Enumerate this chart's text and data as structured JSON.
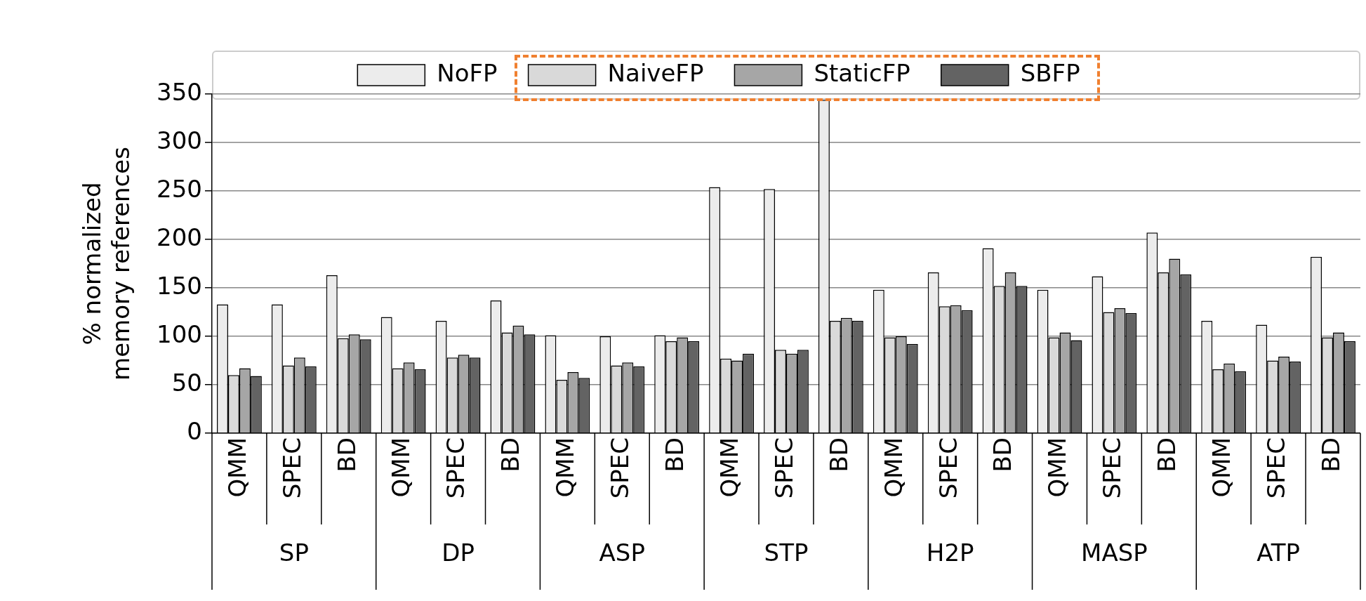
{
  "chart_data": {
    "type": "bar",
    "ylabel": "% normalized\nmemory references",
    "categories": [
      "QMM",
      "SPEC",
      "BD",
      "QMM",
      "SPEC",
      "BD",
      "QMM",
      "SPEC",
      "BD",
      "QMM",
      "SPEC",
      "BD",
      "QMM",
      "SPEC",
      "BD",
      "QMM",
      "SPEC",
      "BD",
      "QMM",
      "SPEC",
      "BD"
    ],
    "annotations": [
      "SP",
      "DP",
      "ASP",
      "STP",
      "H2P",
      "MASP",
      "ATP"
    ],
    "series": [
      {
        "name": "NoFP",
        "color": "#ececec",
        "values": [
          133,
          133,
          163,
          120,
          116,
          137,
          101,
          100,
          101,
          254,
          252,
          344,
          148,
          166,
          191,
          148,
          162,
          207,
          116,
          112,
          182
        ]
      },
      {
        "name": "NaiveFP",
        "color": "#d9d9d9",
        "values": [
          60,
          70,
          98,
          67,
          78,
          104,
          55,
          70,
          95,
          77,
          86,
          116,
          99,
          131,
          152,
          99,
          125,
          166,
          66,
          75,
          99
        ]
      },
      {
        "name": "StaticFP",
        "color": "#a6a6a6",
        "values": [
          67,
          78,
          102,
          73,
          81,
          111,
          63,
          73,
          99,
          75,
          82,
          119,
          100,
          132,
          166,
          104,
          129,
          180,
          72,
          79,
          104
        ]
      },
      {
        "name": "SBFP",
        "color": "#636363",
        "values": [
          59,
          69,
          97,
          66,
          78,
          102,
          57,
          69,
          95,
          82,
          86,
          116,
          92,
          127,
          152,
          96,
          124,
          164,
          64,
          74,
          95
        ]
      }
    ],
    "ylim": [
      0,
      350
    ],
    "yticks": [
      0,
      50,
      100,
      150,
      200,
      250,
      300,
      350
    ],
    "grid": "y",
    "legend": "top"
  }
}
